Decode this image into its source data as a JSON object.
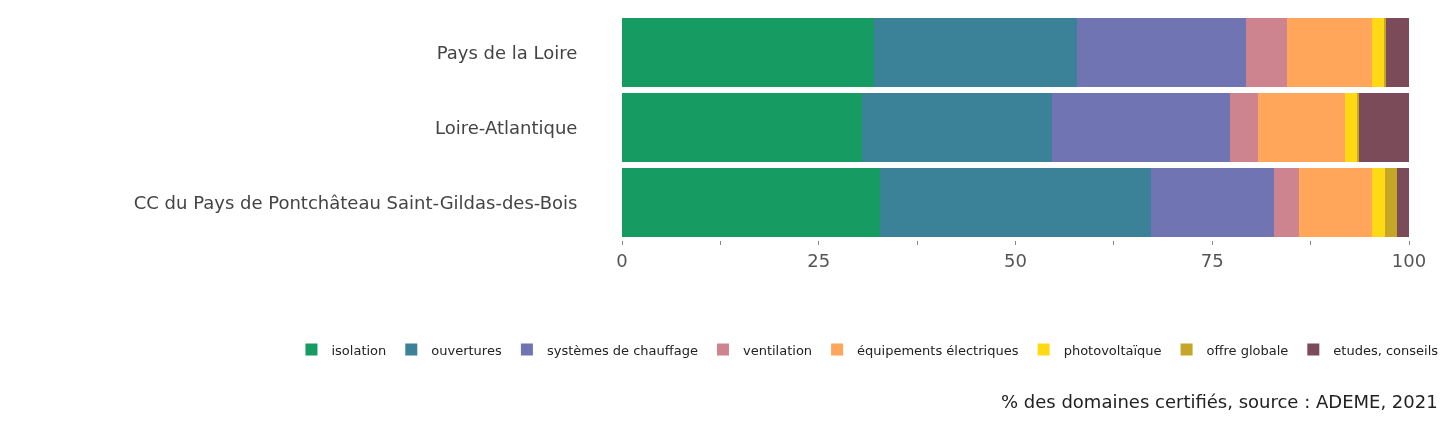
{
  "chart_data": {
    "type": "bar",
    "orientation": "horizontal",
    "stacked": true,
    "categories": [
      "Pays de la Loire",
      "Loire-Atlantique",
      "CC du Pays de Pontchâteau Saint-Gildas-des-Bois"
    ],
    "series": [
      {
        "name": "isolation",
        "color": "#169b62",
        "values": [
          32.0,
          30.5,
          32.8
        ]
      },
      {
        "name": "ouvertures",
        "color": "#3b8298",
        "values": [
          25.8,
          24.1,
          34.4
        ]
      },
      {
        "name": "systèmes de chauffage",
        "color": "#7074b3",
        "values": [
          21.5,
          22.6,
          15.6
        ]
      },
      {
        "name": "ventilation",
        "color": "#ce848e",
        "values": [
          5.2,
          3.6,
          3.2
        ]
      },
      {
        "name": "équipements électriques",
        "color": "#ffa65a",
        "values": [
          10.8,
          11.1,
          9.3
        ]
      },
      {
        "name": "photovoltaïque",
        "color": "#ffd914",
        "values": [
          1.5,
          1.6,
          1.6
        ]
      },
      {
        "name": "offre globale",
        "color": "#c5a629",
        "values": [
          0.3,
          0.1,
          1.6
        ]
      },
      {
        "name": "etudes, conseils",
        "color": "#7b4b5a",
        "values": [
          2.9,
          6.4,
          1.5
        ]
      }
    ],
    "xlim": [
      0,
      100
    ],
    "xticks": [
      0,
      {
        "value": 12.5,
        "label": null
      },
      25,
      {
        "value": 37.5,
        "label": null
      },
      50,
      {
        "value": 62.5,
        "label": null
      },
      75,
      {
        "value": 87.5,
        "label": null
      },
      100
    ],
    "legend": "bottom",
    "annotations": [
      "% des domaines certifiés, source : ADEME, 2021"
    ]
  }
}
